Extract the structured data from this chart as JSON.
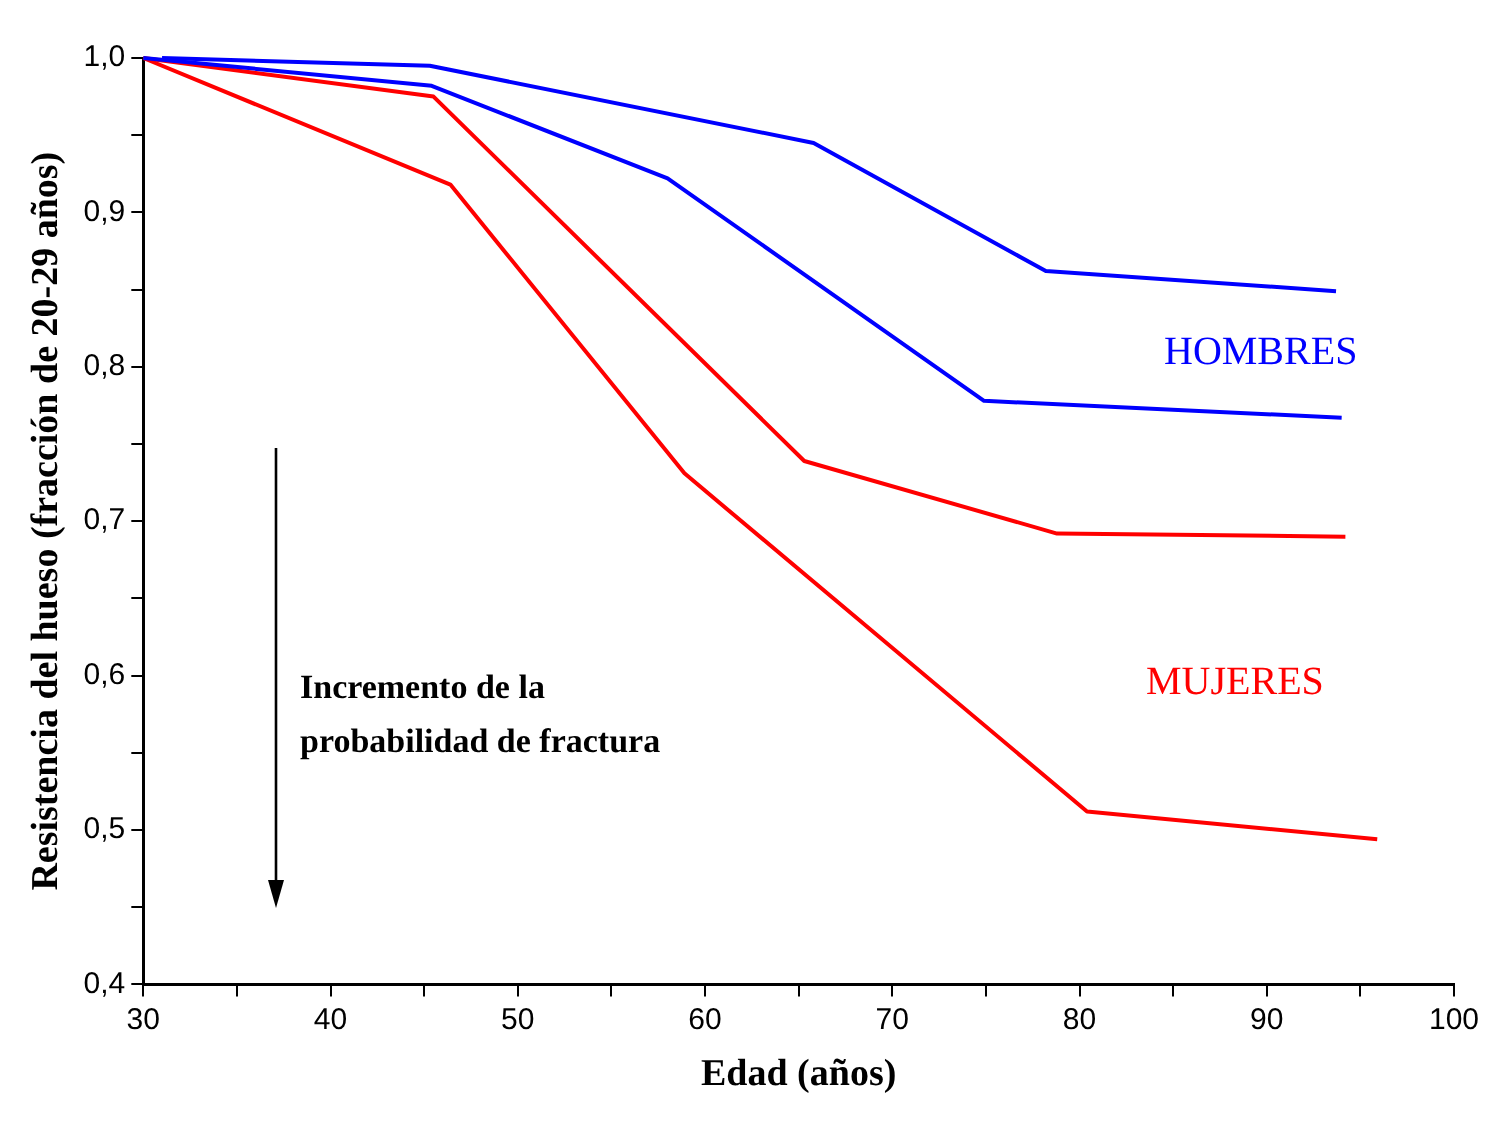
{
  "chart_data": {
    "type": "line",
    "xlabel": "Edad (años)",
    "ylabel": "Resistencia del hueso (fracción de 20-29 años)",
    "xlim": [
      30,
      100
    ],
    "xticks": [
      30,
      {
        "value": 35,
        "label": null
      },
      40,
      {
        "value": 45,
        "label": null
      },
      50,
      {
        "value": 55,
        "label": null
      },
      60,
      {
        "value": 65,
        "label": null
      },
      70,
      {
        "value": 75,
        "label": null
      },
      80,
      {
        "value": 85,
        "label": null
      },
      90,
      {
        "value": 95,
        "label": null
      },
      100
    ],
    "ylim": [
      0.4,
      1.0
    ],
    "yticks": [
      {
        "value": 0.4,
        "label": "0,4"
      },
      {
        "value": 0.45,
        "label": null
      },
      {
        "value": 0.5,
        "label": "0,5"
      },
      {
        "value": 0.55,
        "label": null
      },
      {
        "value": 0.6,
        "label": "0,6"
      },
      {
        "value": 0.65,
        "label": null
      },
      {
        "value": 0.7,
        "label": "0,7"
      },
      {
        "value": 0.75,
        "label": null
      },
      {
        "value": 0.8,
        "label": "0,8"
      },
      {
        "value": 0.85,
        "label": null
      },
      {
        "value": 0.9,
        "label": "0,9"
      },
      {
        "value": 0.95,
        "label": null
      },
      {
        "value": 1.0,
        "label": "1,0"
      }
    ],
    "series": [
      {
        "color": "#0000ff",
        "x": [
          31,
          45.3,
          65.8,
          78.2,
          93.7
        ],
        "values": [
          1.0,
          0.995,
          0.945,
          0.862,
          0.849
        ]
      },
      {
        "color": "#0000ff",
        "x": [
          30,
          45.4,
          58,
          74.9,
          94
        ],
        "values": [
          1.0,
          0.982,
          0.922,
          0.778,
          0.767
        ]
      },
      {
        "color": "#ff0000",
        "x": [
          30,
          45.5,
          65.3,
          78.8,
          94.2
        ],
        "values": [
          1.0,
          0.975,
          0.739,
          0.692,
          0.69
        ]
      },
      {
        "color": "#ff0000",
        "x": [
          30,
          46.4,
          58.9,
          80.4,
          95.9
        ],
        "values": [
          1.0,
          0.918,
          0.731,
          0.512,
          0.494
        ]
      }
    ],
    "annotations": [
      "HOMBRES",
      "MUJERES",
      "Incremento de la probabilidad de fractura"
    ],
    "grid": false,
    "legend": false,
    "marker": "none",
    "line_style": "solid"
  }
}
